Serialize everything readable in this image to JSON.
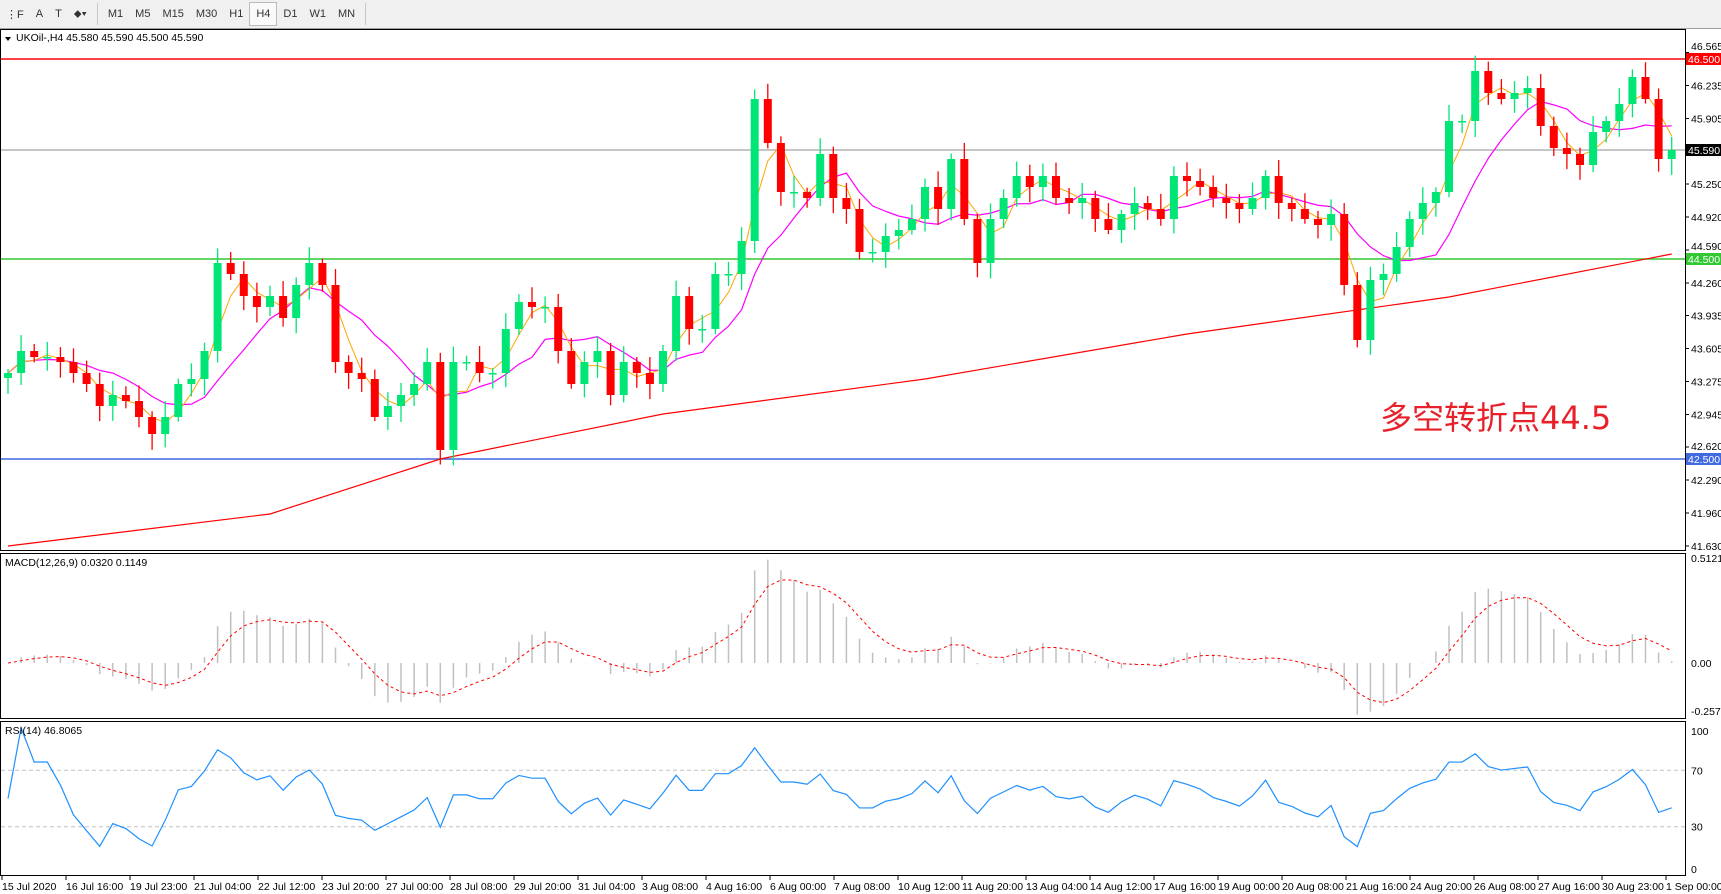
{
  "toolbar": {
    "tools": [
      {
        "name": "periods-icon",
        "label": "⋮F"
      },
      {
        "name": "text-tool-icon",
        "label": "A"
      },
      {
        "name": "text-label-tool-icon",
        "label": "T"
      },
      {
        "name": "arrows-tool-icon",
        "label": "⬥▾"
      }
    ],
    "timeframes": [
      "M1",
      "M5",
      "M15",
      "M30",
      "H1",
      "H4",
      "D1",
      "W1",
      "MN"
    ],
    "selected_timeframe": "H4"
  },
  "main": {
    "header": "UKOil-,H4  45.580 45.590 45.500 45.590",
    "annotation": "多空转折点44.5",
    "price_ticks": [
      "46.565",
      "46.235",
      "45.905",
      "45.250",
      "44.920",
      "44.590",
      "44.260",
      "43.935",
      "43.605",
      "43.275",
      "42.945",
      "42.620",
      "42.290",
      "41.960",
      "41.630"
    ],
    "levels": [
      {
        "price": 46.5,
        "label": "46.500",
        "color": "#ff0000"
      },
      {
        "price": 45.59,
        "label": "45.590",
        "color": "#000000",
        "line": "#8c8c8c"
      },
      {
        "price": 44.5,
        "label": "44.500",
        "color": "#32c832"
      },
      {
        "price": 42.5,
        "label": "42.500",
        "color": "#4169e1"
      }
    ]
  },
  "macd": {
    "header": "MACD(12,26,9) 0.0320 0.1149",
    "ticks": [
      "0.5121",
      "0.00",
      "-0.2578"
    ]
  },
  "rsi": {
    "header": "RSI(14) 46.8065",
    "ticks": [
      "100",
      "70",
      "30",
      "0"
    ]
  },
  "time_labels": [
    "15 Jul 2020",
    "16 Jul 16:00",
    "19 Jul 23:00",
    "21 Jul 04:00",
    "22 Jul 12:00",
    "23 Jul 20:00",
    "27 Jul 00:00",
    "28 Jul 08:00",
    "29 Jul 20:00",
    "31 Jul 04:00",
    "3 Aug 08:00",
    "4 Aug 16:00",
    "6 Aug 00:00",
    "7 Aug 08:00",
    "10 Aug 12:00",
    "11 Aug 20:00",
    "13 Aug 04:00",
    "14 Aug 12:00",
    "17 Aug 16:00",
    "19 Aug 00:00",
    "20 Aug 08:00",
    "21 Aug 16:00",
    "24 Aug 20:00",
    "26 Aug 08:00",
    "27 Aug 16:00",
    "30 Aug 23:00",
    "1 Sep 00:00"
  ],
  "colors": {
    "bull": "#00e676",
    "bear": "#ff0000",
    "ma_fast": "#ffa500",
    "ma_mid": "#ff00ff",
    "ma_slow": "#ff0000",
    "macd_hist": "#c0c0c0",
    "macd_signal": "#ff0000",
    "rsi": "#1e90ff"
  },
  "chart_data": {
    "type": "candlestick",
    "symbol": "UKOil-",
    "timeframe": "H4",
    "ylim": [
      41.63,
      46.565
    ],
    "closes": [
      43.36,
      43.58,
      43.52,
      43.52,
      43.47,
      43.36,
      43.25,
      43.03,
      43.14,
      43.08,
      42.92,
      42.75,
      42.92,
      43.25,
      43.3,
      43.58,
      44.46,
      44.35,
      44.13,
      44.02,
      44.13,
      43.91,
      44.24,
      44.46,
      44.24,
      43.47,
      43.36,
      43.3,
      42.92,
      43.03,
      43.14,
      43.25,
      43.47,
      42.59,
      43.47,
      43.47,
      43.36,
      43.36,
      43.8,
      44.07,
      44.02,
      44.02,
      43.58,
      43.25,
      43.47,
      43.58,
      43.14,
      43.47,
      43.36,
      43.25,
      43.58,
      44.13,
      43.8,
      43.8,
      44.35,
      44.35,
      44.68,
      46.1,
      45.66,
      45.17,
      45.17,
      45.11,
      45.55,
      45.11,
      45.0,
      44.57,
      44.57,
      44.73,
      44.79,
      44.9,
      45.22,
      45.0,
      45.5,
      44.9,
      44.46,
      44.9,
      45.11,
      45.33,
      45.22,
      45.33,
      45.11,
      45.06,
      45.11,
      44.9,
      44.79,
      44.95,
      45.06,
      45.0,
      44.9,
      45.33,
      45.28,
      45.22,
      45.11,
      45.06,
      45.0,
      45.11,
      45.33,
      45.06,
      45.0,
      44.9,
      44.84,
      44.95,
      44.24,
      43.69,
      44.29,
      44.35,
      44.62,
      44.9,
      45.06,
      45.17,
      45.88,
      45.88,
      46.38,
      46.16,
      46.1,
      46.16,
      46.21,
      45.83,
      45.61,
      45.55,
      45.44,
      45.77,
      45.88,
      46.05,
      46.32,
      46.1,
      45.5,
      45.59
    ],
    "slow_ma": [
      [
        0,
        41.63
      ],
      [
        20,
        41.95
      ],
      [
        33,
        42.5
      ],
      [
        50,
        42.95
      ],
      [
        70,
        43.3
      ],
      [
        90,
        43.75
      ],
      [
        110,
        44.12
      ],
      [
        127,
        44.55
      ]
    ]
  }
}
